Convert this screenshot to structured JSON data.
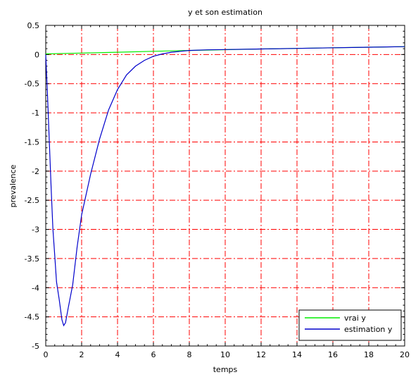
{
  "chart_data": {
    "type": "line",
    "title": "y et son estimation",
    "xlabel": "temps",
    "ylabel": "prevalence",
    "xlim": [
      0,
      20
    ],
    "ylim": [
      -5,
      0.5
    ],
    "grid": true,
    "legend_position": "bottom-right",
    "x_ticks": [
      0,
      2,
      4,
      6,
      8,
      10,
      12,
      14,
      16,
      18,
      20
    ],
    "y_ticks": [
      0.5,
      0,
      -0.5,
      -1,
      -1.5,
      -2,
      -2.5,
      -3,
      -3.5,
      -4,
      -4.5,
      -5
    ],
    "series": [
      {
        "name": "vrai y",
        "color": "#00ee00",
        "x": [
          0,
          2,
          4,
          6,
          8,
          10,
          12,
          14,
          16,
          18,
          20
        ],
        "y": [
          0.01,
          0.025,
          0.04,
          0.055,
          0.07,
          0.083,
          0.095,
          0.105,
          0.115,
          0.125,
          0.135
        ]
      },
      {
        "name": "estimation y",
        "color": "#0000cc",
        "x": [
          0,
          0.1,
          0.2,
          0.3,
          0.4,
          0.5,
          0.6,
          0.75,
          0.9,
          1.0,
          1.1,
          1.25,
          1.5,
          1.75,
          2.0,
          2.5,
          3.0,
          3.5,
          4.0,
          4.5,
          5.0,
          5.5,
          6.0,
          6.5,
          7.0,
          8.0,
          9.0,
          10,
          12,
          14,
          16,
          18,
          20
        ],
        "y": [
          0,
          -0.7,
          -1.5,
          -2.3,
          -3.0,
          -3.45,
          -3.9,
          -4.2,
          -4.55,
          -4.65,
          -4.6,
          -4.35,
          -3.95,
          -3.3,
          -2.75,
          -2.05,
          -1.45,
          -0.95,
          -0.6,
          -0.35,
          -0.2,
          -0.1,
          -0.03,
          0.01,
          0.04,
          0.07,
          0.08,
          0.085,
          0.095,
          0.105,
          0.115,
          0.125,
          0.135
        ]
      }
    ]
  }
}
